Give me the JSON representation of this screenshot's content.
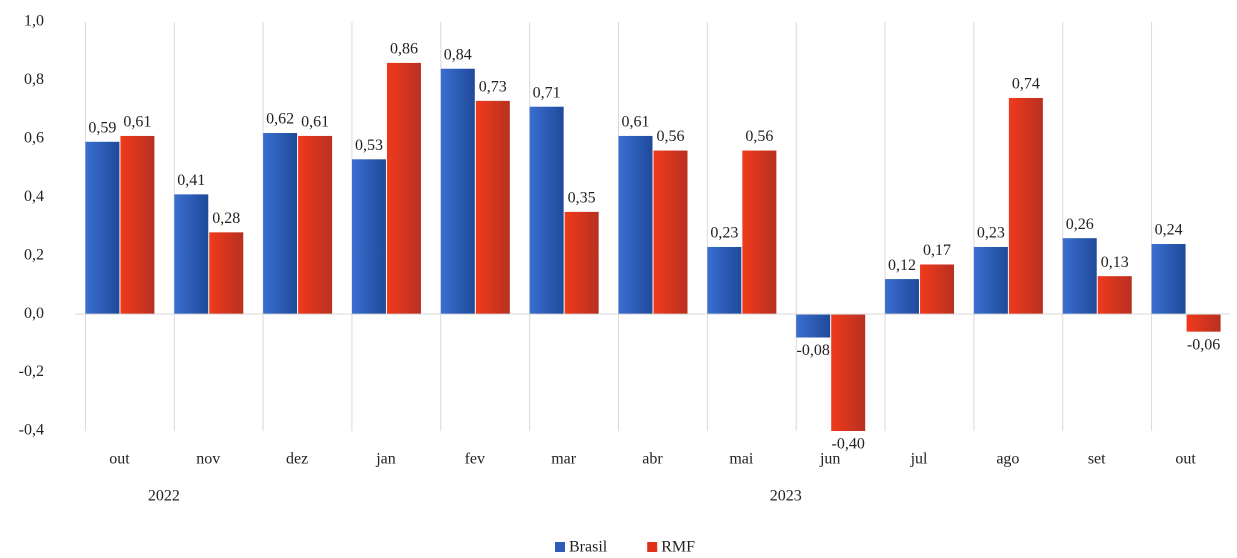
{
  "chart_data": {
    "type": "bar",
    "categories": [
      "out",
      "nov",
      "dez",
      "jan",
      "fev",
      "mar",
      "abr",
      "mai",
      "jun",
      "jul",
      "ago",
      "set",
      "out"
    ],
    "annotations": [
      "2022",
      "2023"
    ],
    "series": [
      {
        "name": "Brasil",
        "color": "#2e5cb8",
        "values": [
          0.59,
          0.41,
          0.62,
          0.53,
          0.84,
          0.71,
          0.61,
          0.23,
          -0.08,
          0.12,
          0.23,
          0.26,
          0.24
        ],
        "value_labels": [
          "0,59",
          "0,41",
          "0,62",
          "0,53",
          "0,84",
          "0,71",
          "0,61",
          "0,23",
          "-0,08",
          "0,12",
          "0,23",
          "0,26",
          "0,24"
        ]
      },
      {
        "name": "RMF",
        "color": "#e0301a",
        "values": [
          0.61,
          0.28,
          0.61,
          0.86,
          0.73,
          0.35,
          0.56,
          0.56,
          -0.4,
          0.17,
          0.74,
          0.13,
          -0.06
        ],
        "value_labels": [
          "0,61",
          "0,28",
          "0,61",
          "0,86",
          "0,73",
          "0,35",
          "0,56",
          "0,56",
          "-0,40",
          "0,17",
          "0,74",
          "0,13",
          "-0,06"
        ]
      }
    ],
    "ylim": [
      -0.4,
      1.0
    ],
    "yticks": [
      {
        "value": 1.0,
        "label": "1,0"
      },
      {
        "value": 0.8,
        "label": "0,8"
      },
      {
        "value": 0.6,
        "label": "0,6"
      },
      {
        "value": 0.4,
        "label": "0,4"
      },
      {
        "value": 0.2,
        "label": "0,2"
      },
      {
        "value": 0,
        "label": "0,0"
      },
      {
        "value": -0.2,
        "label": "-0,2"
      },
      {
        "value": -0.4,
        "label": "-0,4"
      }
    ],
    "legend": "bottom"
  }
}
